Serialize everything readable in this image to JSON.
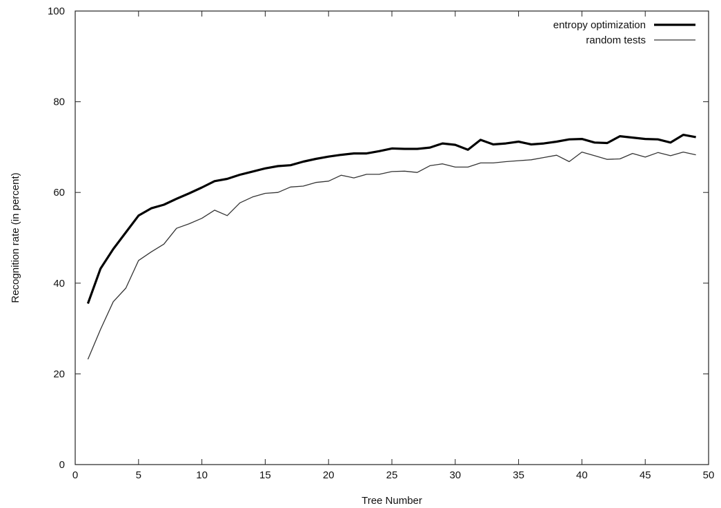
{
  "chart_data": {
    "type": "line",
    "title": "",
    "xlabel": "Tree Number",
    "ylabel": "Recognition rate (in percent)",
    "xlim": [
      0,
      50
    ],
    "ylim": [
      0,
      100
    ],
    "xticks": [
      "0",
      "5",
      "10",
      "15",
      "20",
      "25",
      "30",
      "35",
      "40",
      "45",
      "50"
    ],
    "yticks": [
      "0",
      "20",
      "40",
      "60",
      "80",
      "100"
    ],
    "grid": false,
    "legend_position": "top-right",
    "x": [
      1,
      2,
      3,
      4,
      5,
      6,
      7,
      8,
      9,
      10,
      11,
      12,
      13,
      14,
      15,
      16,
      17,
      18,
      19,
      20,
      21,
      22,
      23,
      24,
      25,
      26,
      27,
      28,
      29,
      30,
      31,
      32,
      33,
      34,
      35,
      36,
      37,
      38,
      39,
      40,
      41,
      42,
      43,
      44,
      45,
      46,
      47,
      48,
      49
    ],
    "series": [
      {
        "name": "entropy optimization",
        "color": "#000000",
        "values": [
          35.5,
          43.2,
          47.5,
          51.2,
          54.9,
          56.5,
          57.3,
          58.6,
          59.8,
          61.1,
          62.5,
          63.0,
          63.9,
          64.6,
          65.3,
          65.8,
          66.0,
          66.8,
          67.4,
          67.9,
          68.3,
          68.6,
          68.6,
          69.1,
          69.7,
          69.6,
          69.6,
          69.9,
          70.8,
          70.5,
          69.4,
          71.6,
          70.6,
          70.8,
          71.2,
          70.6,
          70.8,
          71.2,
          71.7,
          71.8,
          71.0,
          70.9,
          72.4,
          72.1,
          71.8,
          71.7,
          71.0,
          72.7,
          72.2
        ]
      },
      {
        "name": "random tests",
        "color": "#333333",
        "values": [
          23.2,
          29.8,
          35.9,
          38.9,
          45.0,
          46.9,
          48.6,
          52.1,
          53.1,
          54.3,
          56.1,
          54.9,
          57.7,
          59.0,
          59.8,
          60.0,
          61.2,
          61.4,
          62.2,
          62.5,
          63.8,
          63.2,
          64.0,
          64.0,
          64.6,
          64.7,
          64.4,
          65.9,
          66.3,
          65.6,
          65.6,
          66.5,
          66.5,
          66.8,
          67.0,
          67.2,
          67.7,
          68.2,
          66.8,
          68.9,
          68.1,
          67.3,
          67.4,
          68.6,
          67.8,
          68.8,
          68.1,
          68.9,
          68.3
        ]
      }
    ]
  }
}
